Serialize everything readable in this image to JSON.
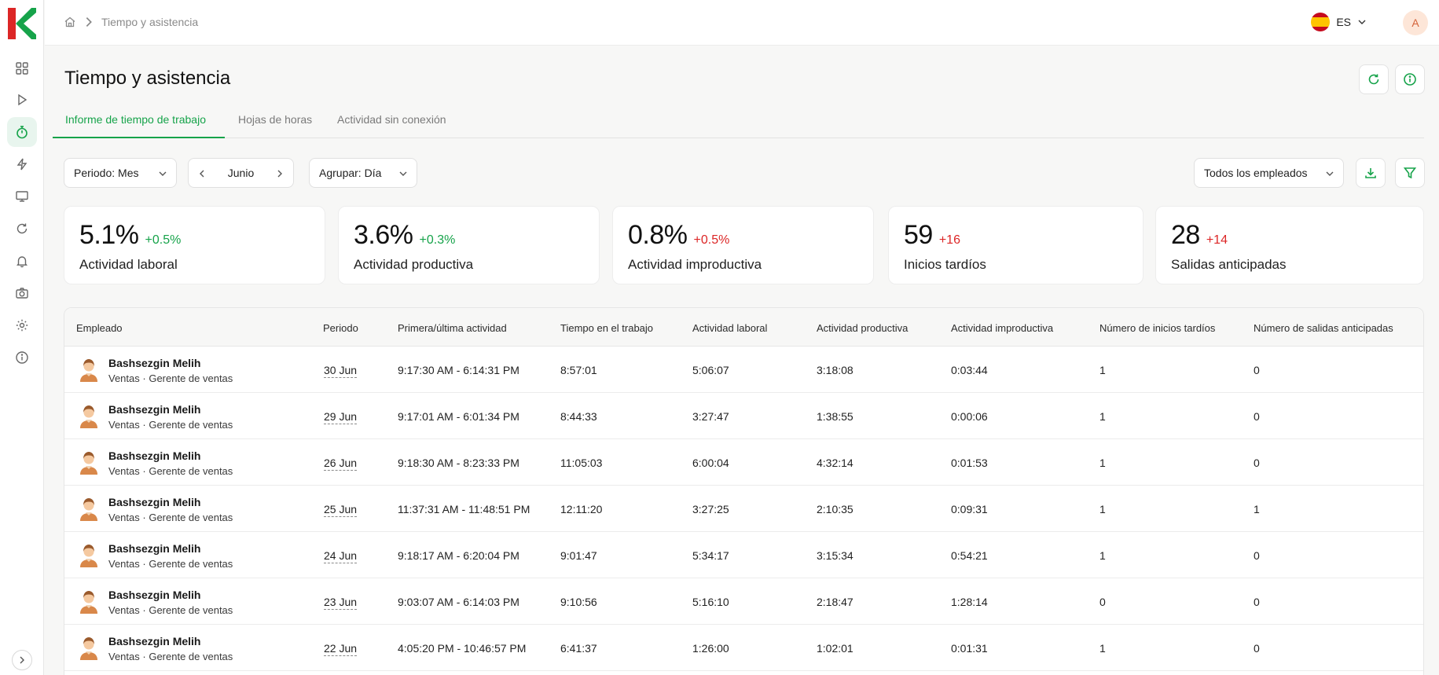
{
  "brand": {
    "green": "#16a34a",
    "red": "#dc2626",
    "logo_icon": "k-logo"
  },
  "sidebar": {
    "items": [
      {
        "icon": "dashboard-icon"
      },
      {
        "icon": "play-icon"
      },
      {
        "icon": "stopwatch-icon",
        "active": true
      },
      {
        "icon": "lightning-icon"
      },
      {
        "icon": "monitor-icon"
      },
      {
        "icon": "refresh-icon"
      },
      {
        "icon": "bell-icon"
      },
      {
        "icon": "camera-icon"
      },
      {
        "icon": "gear-icon"
      },
      {
        "icon": "info-icon"
      }
    ]
  },
  "topbar": {
    "breadcrumb": "Tiempo y asistencia",
    "language": "ES",
    "user_initial": "A"
  },
  "page": {
    "title": "Tiempo y asistencia"
  },
  "tabs": [
    {
      "label": "Informe de tiempo de trabajo",
      "active": true
    },
    {
      "label": "Hojas de horas"
    },
    {
      "label": "Actividad sin conexión"
    }
  ],
  "filters": {
    "period": "Periodo: Mes",
    "month": "Junio",
    "group": "Agrupar: Día",
    "employees": "Todos los empleados"
  },
  "stats": [
    {
      "value": "5.1%",
      "delta": "+0.5%",
      "delta_color": "#16a34a",
      "label": "Actividad laboral"
    },
    {
      "value": "3.6%",
      "delta": "+0.3%",
      "delta_color": "#16a34a",
      "label": "Actividad productiva"
    },
    {
      "value": "0.8%",
      "delta": "+0.5%",
      "delta_color": "#dc2626",
      "label": "Actividad improductiva"
    },
    {
      "value": "59",
      "delta": "+16",
      "delta_color": "#dc2626",
      "label": "Inicios tardíos"
    },
    {
      "value": "28",
      "delta": "+14",
      "delta_color": "#dc2626",
      "label": "Salidas anticipadas"
    }
  ],
  "table": {
    "headers": [
      "Empleado",
      "Periodo",
      "Primera/última actividad",
      "Tiempo en el trabajo",
      "Actividad laboral",
      "Actividad productiva",
      "Actividad improductiva",
      "Número de inicios tardíos",
      "Número de salidas anticipadas"
    ],
    "rows": [
      {
        "name": "Bashsezgin Melih",
        "dept": "Ventas",
        "role": "Gerente de ventas",
        "date": "30 Jun",
        "first_last": "9:17:30 AM - 6:14:31 PM",
        "time_at_work": "8:57:01",
        "work": "5:06:07",
        "productive": "3:18:08",
        "unproductive": "0:03:44",
        "late": "1",
        "early": "0"
      },
      {
        "name": "Bashsezgin Melih",
        "dept": "Ventas",
        "role": "Gerente de ventas",
        "date": "29 Jun",
        "first_last": "9:17:01 AM - 6:01:34 PM",
        "time_at_work": "8:44:33",
        "work": "3:27:47",
        "productive": "1:38:55",
        "unproductive": "0:00:06",
        "late": "1",
        "early": "0"
      },
      {
        "name": "Bashsezgin Melih",
        "dept": "Ventas",
        "role": "Gerente de ventas",
        "date": "26 Jun",
        "first_last": "9:18:30 AM - 8:23:33 PM",
        "time_at_work": "11:05:03",
        "work": "6:00:04",
        "productive": "4:32:14",
        "unproductive": "0:01:53",
        "late": "1",
        "early": "0"
      },
      {
        "name": "Bashsezgin Melih",
        "dept": "Ventas",
        "role": "Gerente de ventas",
        "date": "25 Jun",
        "first_last": "11:37:31 AM - 11:48:51 PM",
        "time_at_work": "12:11:20",
        "work": "3:27:25",
        "productive": "2:10:35",
        "unproductive": "0:09:31",
        "late": "1",
        "early": "1"
      },
      {
        "name": "Bashsezgin Melih",
        "dept": "Ventas",
        "role": "Gerente de ventas",
        "date": "24 Jun",
        "first_last": "9:18:17 AM - 6:20:04 PM",
        "time_at_work": "9:01:47",
        "work": "5:34:17",
        "productive": "3:15:34",
        "unproductive": "0:54:21",
        "late": "1",
        "early": "0"
      },
      {
        "name": "Bashsezgin Melih",
        "dept": "Ventas",
        "role": "Gerente de ventas",
        "date": "23 Jun",
        "first_last": "9:03:07 AM - 6:14:03 PM",
        "time_at_work": "9:10:56",
        "work": "5:16:10",
        "productive": "2:18:47",
        "unproductive": "1:28:14",
        "late": "0",
        "early": "0"
      },
      {
        "name": "Bashsezgin Melih",
        "dept": "Ventas",
        "role": "Gerente de ventas",
        "date": "22 Jun",
        "first_last": "4:05:20 PM - 10:46:57 PM",
        "time_at_work": "6:41:37",
        "work": "1:26:00",
        "productive": "1:02:01",
        "unproductive": "0:01:31",
        "late": "1",
        "early": "0"
      }
    ]
  }
}
